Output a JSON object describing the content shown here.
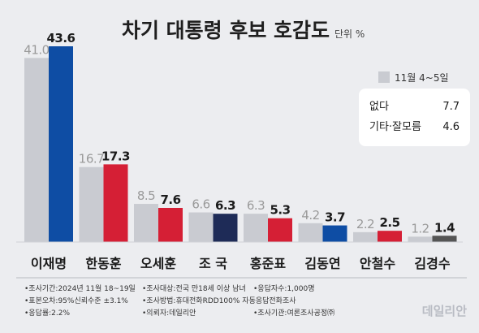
{
  "chart_data": {
    "type": "bar",
    "title": "차기 대통령 후보 호감도",
    "unit_label": "단위 %",
    "categories": [
      "이재명",
      "한동훈",
      "오세훈",
      "조 국",
      "홍준표",
      "김동연",
      "안철수",
      "김경수"
    ],
    "series": [
      {
        "name": "11월 4~5일",
        "color": "#c9cbd1",
        "values": [
          41.0,
          16.7,
          8.5,
          6.6,
          6.3,
          4.2,
          2.2,
          1.2
        ],
        "labels": [
          "41.0",
          "16.7",
          "8.5",
          "6.6",
          "6.3",
          "4.2",
          "2.2",
          "1.2"
        ]
      },
      {
        "colors": [
          "#0e4da4",
          "#d51f35",
          "#d51f35",
          "#1e2b57",
          "#d51f35",
          "#0e4da4",
          "#d51f35",
          "#555555"
        ],
        "values": [
          43.6,
          17.3,
          7.6,
          6.3,
          5.3,
          3.7,
          2.5,
          1.4
        ],
        "labels": [
          "43.6",
          "17.3",
          "7.6",
          "6.3",
          "5.3",
          "3.7",
          "2.5",
          "1.4"
        ]
      }
    ],
    "ylim": [
      0,
      45
    ],
    "legend_position": "top-right",
    "summary_box": [
      {
        "label": "없다",
        "value": "7.7"
      },
      {
        "label": "기타·잘모름",
        "value": "4.6"
      }
    ]
  },
  "footnotes": [
    [
      "•조사기간:2024년 11월 18~19일",
      "•조사대상:전국 만18세 이상 남녀",
      "•응답자수:1,000명"
    ],
    [
      "•표본오차:95%신뢰수준 ±3.1%",
      "•조사방법:휴대전화RDD100% 자동응답전화조사"
    ],
    [
      "•응답률:2.2%",
      "•의뢰자:데일리안",
      "•조사기관:여론조사공정㈜"
    ]
  ],
  "watermark": "데일리안"
}
